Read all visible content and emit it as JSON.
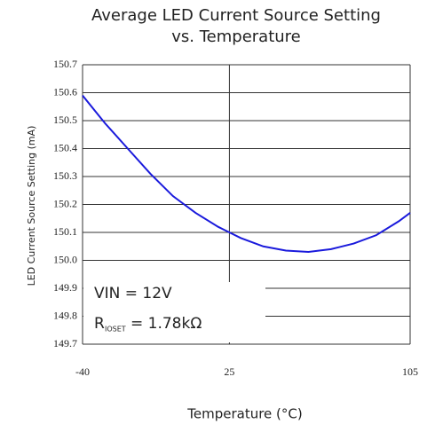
{
  "chart_data": {
    "type": "line",
    "title": [
      "Average LED Current Source Setting",
      "vs. Temperature"
    ],
    "xlabel": "Temperature (°C)",
    "ylabel": "LED Current Source Setting  (mA)",
    "annotations": [
      "VIN = 12V",
      "R",
      "IOSET",
      "= 1.78kΩ"
    ],
    "x": [
      -40,
      -30,
      -20,
      -10,
      0,
      10,
      20,
      30,
      40,
      50,
      60,
      70,
      80,
      90,
      100,
      105
    ],
    "series": [
      {
        "color": "#1a1adc",
        "values": [
          150.59,
          150.49,
          150.4,
          150.31,
          150.23,
          150.17,
          150.12,
          150.08,
          150.05,
          150.035,
          150.03,
          150.04,
          150.06,
          150.09,
          150.14,
          150.17
        ]
      }
    ],
    "xlim": [
      -40,
      105
    ],
    "xticks": [
      -40,
      25,
      105
    ],
    "ylim": [
      149.7,
      150.7
    ],
    "yticks": [
      {
        "value": 149.7,
        "label": "149.7"
      },
      {
        "value": 149.8,
        "label": "149.8"
      },
      {
        "value": 149.9,
        "label": "149.9"
      },
      {
        "value": 150.0,
        "label": "150.0"
      },
      {
        "value": 150.1,
        "label": "150.1"
      },
      {
        "value": 150.2,
        "label": "150.2"
      },
      {
        "value": 150.3,
        "label": "150.3"
      },
      {
        "value": 150.4,
        "label": "150.4"
      },
      {
        "value": 150.5,
        "label": "150.5"
      },
      {
        "value": 150.6,
        "label": "150.6"
      },
      {
        "value": 150.7,
        "label": "150.7"
      }
    ],
    "grid": true
  }
}
